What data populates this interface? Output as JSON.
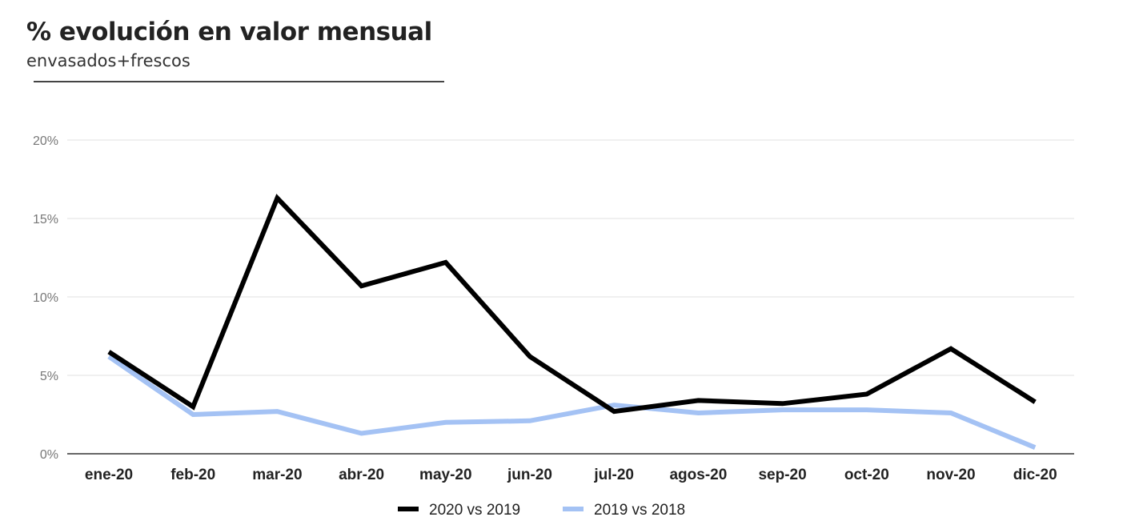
{
  "title": "% evolución en valor mensual",
  "subtitle": "envasados+frescos",
  "chart_data": {
    "type": "line",
    "title": "% evolución en valor mensual",
    "subtitle": "envasados+frescos",
    "xlabel": "",
    "ylabel": "",
    "ylim": [
      0,
      20
    ],
    "yticks": [
      0,
      5,
      10,
      15,
      20
    ],
    "ytick_labels": [
      "0%",
      "5%",
      "10%",
      "15%",
      "20%"
    ],
    "grid": true,
    "legend_position": "bottom",
    "categories": [
      "ene-20",
      "feb-20",
      "mar-20",
      "abr-20",
      "may-20",
      "jun-20",
      "jul-20",
      "agos-20",
      "sep-20",
      "oct-20",
      "nov-20",
      "dic-20"
    ],
    "series": [
      {
        "name": "2020 vs 2019",
        "color": "#000000",
        "values": [
          6.5,
          3.0,
          16.3,
          10.7,
          12.2,
          6.2,
          2.7,
          3.4,
          3.2,
          3.8,
          6.7,
          3.3
        ]
      },
      {
        "name": "2019 vs 2018",
        "color": "#a4c2f4",
        "values": [
          6.2,
          2.5,
          2.7,
          1.3,
          2.0,
          2.1,
          3.1,
          2.6,
          2.8,
          2.8,
          2.6,
          0.4
        ]
      }
    ]
  }
}
